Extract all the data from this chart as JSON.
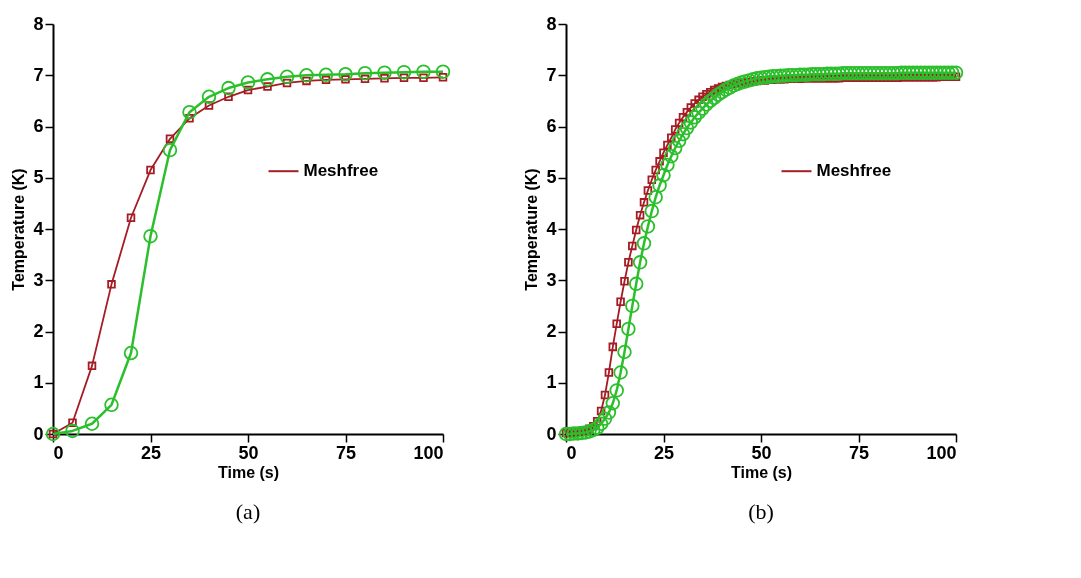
{
  "chart_data": [
    {
      "type": "line",
      "xlabel": "Time (s)",
      "ylabel": "Temperature (K)",
      "annotations": [
        "(a)"
      ],
      "xlim": [
        0,
        100
      ],
      "ylim": [
        0,
        8
      ],
      "xticks": [
        0,
        25,
        50,
        75,
        100
      ],
      "yticks": [
        0,
        1,
        2,
        3,
        4,
        5,
        6,
        7,
        8
      ],
      "grid": false,
      "legend": "right",
      "line_style": "solid",
      "x": [
        0,
        5,
        10,
        15,
        20,
        25,
        30,
        35,
        40,
        45,
        50,
        55,
        60,
        65,
        70,
        75,
        80,
        85,
        90,
        95,
        100
      ],
      "series": [
        {
          "name": "Meshfree",
          "color": "#a51c24",
          "marker": "square",
          "values": [
            0,
            0.22,
            1.33,
            2.92,
            4.22,
            5.15,
            5.76,
            6.16,
            6.41,
            6.58,
            6.71,
            6.78,
            6.85,
            6.89,
            6.91,
            6.92,
            6.93,
            6.94,
            6.95,
            6.95,
            6.96
          ]
        },
        {
          "color": "#2cbf2c",
          "marker": "circle",
          "values": [
            0,
            0.06,
            0.2,
            0.57,
            1.58,
            3.86,
            5.54,
            6.28,
            6.58,
            6.75,
            6.86,
            6.92,
            6.97,
            7.0,
            7.01,
            7.02,
            7.04,
            7.05,
            7.06,
            7.07,
            7.07
          ]
        }
      ]
    },
    {
      "type": "line",
      "xlabel": "Time (s)",
      "ylabel": "Temperature (K)",
      "annotations": [
        "(b)"
      ],
      "xlim": [
        0,
        100
      ],
      "ylim": [
        0,
        8
      ],
      "xticks": [
        0,
        25,
        50,
        75,
        100
      ],
      "yticks": [
        0,
        1,
        2,
        3,
        4,
        5,
        6,
        7,
        8
      ],
      "grid": false,
      "legend": "right",
      "line_style": "solid",
      "x": [
        0,
        1,
        2,
        3,
        4,
        5,
        6,
        7,
        8,
        9,
        10,
        11,
        12,
        13,
        14,
        15,
        16,
        17,
        18,
        19,
        20,
        21,
        22,
        23,
        24,
        25,
        26,
        27,
        28,
        29,
        30,
        31,
        32,
        33,
        34,
        35,
        36,
        37,
        38,
        39,
        40,
        41,
        42,
        43,
        44,
        45,
        46,
        47,
        48,
        49,
        50,
        51,
        52,
        53,
        54,
        55,
        56,
        57,
        58,
        59,
        60,
        61,
        62,
        63,
        64,
        65,
        66,
        67,
        68,
        69,
        70,
        71,
        72,
        73,
        74,
        75,
        76,
        77,
        78,
        79,
        80,
        81,
        82,
        83,
        84,
        85,
        86,
        87,
        88,
        89,
        90,
        91,
        92,
        93,
        94,
        95,
        96,
        97,
        98,
        99,
        100
      ],
      "series": [
        {
          "name": "Meshfree",
          "color": "#a51c24",
          "marker": "square",
          "values": [
            0.02,
            0.02,
            0.03,
            0.04,
            0.05,
            0.07,
            0.1,
            0.15,
            0.25,
            0.45,
            0.76,
            1.2,
            1.7,
            2.15,
            2.58,
            2.98,
            3.35,
            3.67,
            3.98,
            4.27,
            4.52,
            4.75,
            4.96,
            5.15,
            5.32,
            5.49,
            5.64,
            5.78,
            5.94,
            6.07,
            6.18,
            6.28,
            6.37,
            6.45,
            6.52,
            6.58,
            6.63,
            6.67,
            6.71,
            6.74,
            6.77,
            6.79,
            6.81,
            6.83,
            6.84,
            6.85,
            6.86,
            6.87,
            6.88,
            6.89,
            6.9,
            6.9,
            6.91,
            6.91,
            6.92,
            6.92,
            6.92,
            6.93,
            6.93,
            6.93,
            6.93,
            6.94,
            6.94,
            6.94,
            6.94,
            6.94,
            6.94,
            6.94,
            6.94,
            6.94,
            6.94,
            6.95,
            6.95,
            6.95,
            6.95,
            6.95,
            6.95,
            6.95,
            6.95,
            6.95,
            6.95,
            6.95,
            6.95,
            6.95,
            6.95,
            6.95,
            6.96,
            6.96,
            6.96,
            6.96,
            6.96,
            6.96,
            6.96,
            6.96,
            6.96,
            6.96,
            6.97,
            6.97,
            6.97,
            6.97,
            6.97
          ]
        },
        {
          "color": "#2cbf2c",
          "marker": "circle",
          "values": [
            0,
            0,
            0.01,
            0.01,
            0.02,
            0.03,
            0.05,
            0.08,
            0.12,
            0.2,
            0.3,
            0.42,
            0.6,
            0.85,
            1.2,
            1.6,
            2.05,
            2.5,
            2.93,
            3.35,
            3.72,
            4.05,
            4.35,
            4.62,
            4.85,
            5.05,
            5.25,
            5.42,
            5.58,
            5.72,
            5.85,
            5.97,
            6.08,
            6.18,
            6.27,
            6.35,
            6.43,
            6.5,
            6.56,
            6.62,
            6.67,
            6.72,
            6.76,
            6.8,
            6.83,
            6.86,
            6.88,
            6.9,
            6.92,
            6.94,
            6.95,
            6.96,
            6.97,
            6.98,
            6.98,
            6.99,
            6.99,
            7.0,
            7.0,
            7.0,
            7.01,
            7.01,
            7.01,
            7.02,
            7.02,
            7.02,
            7.02,
            7.03,
            7.03,
            7.03,
            7.03,
            7.04,
            7.04,
            7.04,
            7.04,
            7.04,
            7.04,
            7.04,
            7.04,
            7.04,
            7.04,
            7.04,
            7.04,
            7.04,
            7.04,
            7.04,
            7.05,
            7.05,
            7.05,
            7.05,
            7.05,
            7.05,
            7.05,
            7.05,
            7.05,
            7.05,
            7.05,
            7.05,
            7.05,
            7.05,
            7.05
          ]
        }
      ]
    }
  ]
}
